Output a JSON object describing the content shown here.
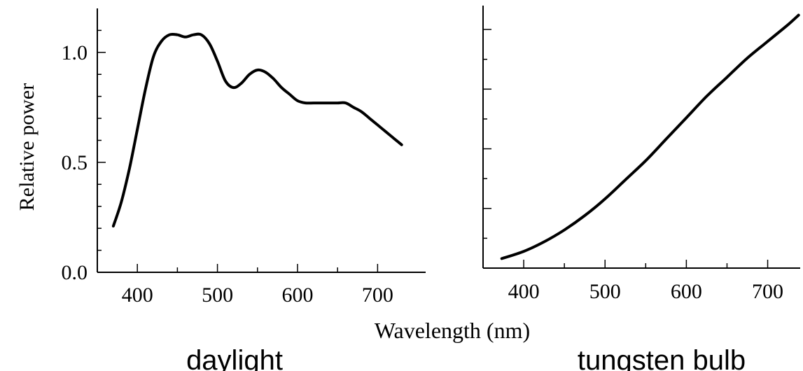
{
  "shared_xlabel": "Wavelength (nm)",
  "chart_data": [
    {
      "type": "line",
      "caption": "daylight",
      "ylabel": "Relative power",
      "xlim": [
        350,
        760
      ],
      "ylim": [
        0,
        1.2
      ],
      "xticks": [
        400,
        500,
        600,
        700
      ],
      "yticks": [
        0.0,
        0.5,
        1.0
      ],
      "yticklabels": [
        "0.0",
        "0.5",
        "1.0"
      ],
      "grid": false,
      "series": [
        {
          "color": "#000000",
          "x": [
            370,
            380,
            390,
            400,
            410,
            420,
            430,
            440,
            450,
            460,
            470,
            480,
            490,
            500,
            510,
            520,
            530,
            540,
            550,
            560,
            570,
            580,
            590,
            600,
            610,
            620,
            630,
            640,
            650,
            660,
            670,
            680,
            690,
            700,
            710,
            720,
            730
          ],
          "y": [
            0.21,
            0.32,
            0.47,
            0.65,
            0.83,
            0.98,
            1.05,
            1.08,
            1.08,
            1.07,
            1.08,
            1.08,
            1.04,
            0.96,
            0.87,
            0.84,
            0.86,
            0.9,
            0.92,
            0.91,
            0.88,
            0.84,
            0.81,
            0.78,
            0.77,
            0.77,
            0.77,
            0.77,
            0.77,
            0.77,
            0.75,
            0.73,
            0.7,
            0.67,
            0.64,
            0.61,
            0.58
          ]
        }
      ]
    },
    {
      "type": "line",
      "caption": "tungsten bulb",
      "xlim": [
        350,
        740
      ],
      "ylim": [
        0,
        1.1
      ],
      "xticks": [
        400,
        500,
        600,
        700
      ],
      "yticks": [
        0.25,
        0.5,
        0.75,
        1.0
      ],
      "grid": false,
      "series": [
        {
          "color": "#000000",
          "x": [
            373,
            400,
            425,
            450,
            475,
            500,
            525,
            550,
            575,
            600,
            625,
            650,
            675,
            700,
            725,
            738
          ],
          "y": [
            0.04,
            0.07,
            0.11,
            0.16,
            0.22,
            0.29,
            0.37,
            0.45,
            0.54,
            0.63,
            0.72,
            0.8,
            0.88,
            0.95,
            1.02,
            1.06
          ]
        }
      ]
    }
  ]
}
